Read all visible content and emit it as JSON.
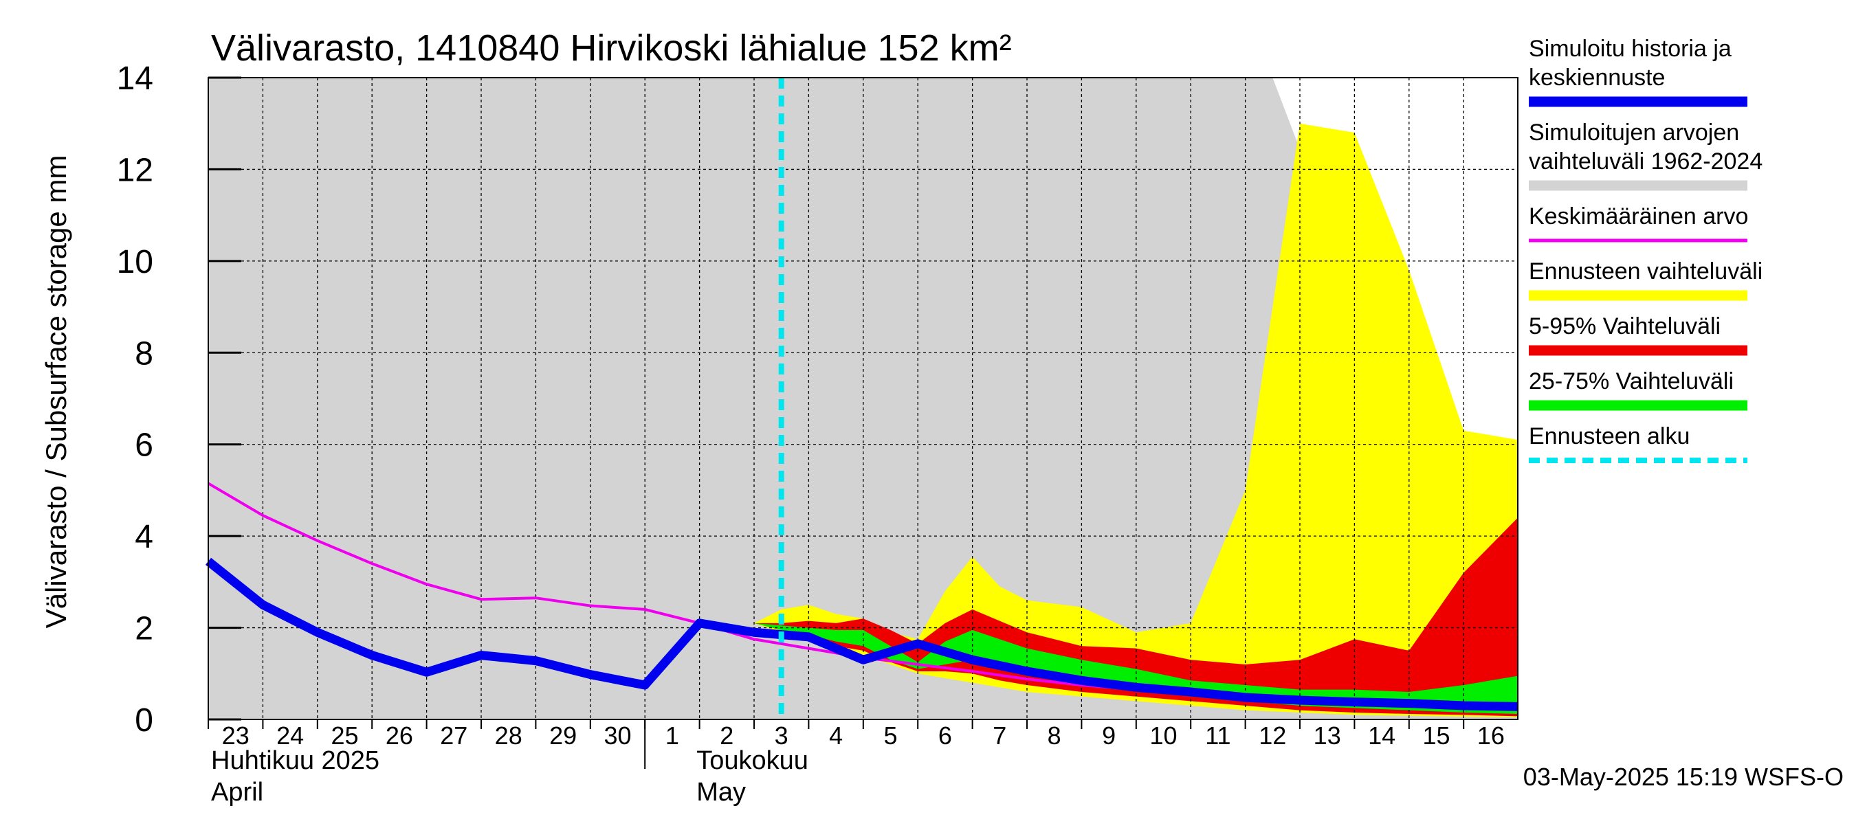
{
  "chart_data": {
    "type": "area",
    "title": "Välivarasto, 1410840 Hirvikoski lähialue 152 km²",
    "ylabel": "Välivarasto / Subsurface storage  mm",
    "xlabel": "",
    "ylim": [
      0,
      14
    ],
    "y_ticks": [
      0,
      2,
      4,
      6,
      8,
      10,
      12,
      14
    ],
    "grid": true,
    "x_tick_labels": [
      "23",
      "24",
      "25",
      "26",
      "27",
      "28",
      "29",
      "30",
      "1",
      "2",
      "3",
      "4",
      "5",
      "6",
      "7",
      "8",
      "9",
      "10",
      "11",
      "12",
      "13",
      "14",
      "15",
      "16"
    ],
    "month_labels": [
      {
        "fi": "Huhtikuu  2025",
        "en": "April"
      },
      {
        "fi": "Toukokuu",
        "en": "May"
      }
    ],
    "forecast_start_day": 10.5,
    "timestamp": "03-May-2025 15:19 WSFS-O",
    "legend_position": "right",
    "legend": [
      {
        "label_lines": [
          "Simuloitu historia ja",
          "keskiennuste"
        ],
        "color": "#0000ee",
        "style": "thick"
      },
      {
        "label_lines": [
          "Simuloitujen arvojen",
          "vaihteluväli 1962-2024"
        ],
        "color": "#d3d3d3",
        "style": "thick"
      },
      {
        "label_lines": [
          "Keskimääräinen arvo"
        ],
        "color": "#ee00ee",
        "style": "thin"
      },
      {
        "label_lines": [
          "Ennusteen vaihteluväli"
        ],
        "color": "#ffff00",
        "style": "thick"
      },
      {
        "label_lines": [
          "5-95% Vaihteluväli"
        ],
        "color": "#ee0000",
        "style": "thick"
      },
      {
        "label_lines": [
          "25-75% Vaihteluväli"
        ],
        "color": "#00ee00",
        "style": "thick"
      },
      {
        "label_lines": [
          "Ennusteen alku"
        ],
        "color": "#00e5ee",
        "style": "dashed"
      }
    ],
    "series": [
      {
        "name": "Simuloitujen arvojen vaihteluväli 1962-2024",
        "color": "#d3d3d3",
        "x_upper": [
          0,
          19.5,
          20.3,
          21.3,
          22.3,
          23.3,
          24.3
        ],
        "upper": [
          14,
          14,
          11.5,
          9.0,
          7.0,
          5.6,
          5.0
        ],
        "x_lower": [
          0,
          24.3
        ],
        "lower": [
          0,
          0
        ]
      },
      {
        "name": "Ennusteen vaihteluväli",
        "color": "#ffff00",
        "x": [
          10,
          10.5,
          11,
          11.5,
          12,
          12.5,
          13,
          13.5,
          14,
          14.5,
          15,
          16,
          17,
          18,
          19,
          20,
          21,
          22,
          23,
          24.3
        ],
        "upper": [
          2.1,
          2.4,
          2.5,
          2.3,
          2.2,
          1.9,
          1.75,
          2.8,
          3.55,
          2.9,
          2.6,
          2.45,
          1.9,
          2.1,
          5.0,
          13.0,
          12.8,
          9.8,
          6.3,
          6.1
        ],
        "lower": [
          2.1,
          1.9,
          1.7,
          1.5,
          1.4,
          1.2,
          1.0,
          0.9,
          0.8,
          0.7,
          0.6,
          0.5,
          0.4,
          0.3,
          0.2,
          0.15,
          0.1,
          0.08,
          0.06,
          0.05
        ]
      },
      {
        "name": "5-95% Vaihteluväli",
        "color": "#ee0000",
        "x": [
          10,
          10.5,
          11,
          11.5,
          12,
          12.5,
          13,
          13.5,
          14,
          14.5,
          15,
          16,
          17,
          18,
          19,
          20,
          21,
          22,
          23,
          24.3
        ],
        "upper": [
          2.1,
          2.1,
          2.15,
          2.1,
          2.2,
          1.95,
          1.65,
          2.1,
          2.4,
          2.15,
          1.9,
          1.6,
          1.55,
          1.3,
          1.2,
          1.3,
          1.75,
          1.5,
          3.2,
          4.4
        ],
        "lower": [
          2.1,
          1.95,
          1.8,
          1.6,
          1.5,
          1.25,
          1.05,
          1.05,
          1.0,
          0.85,
          0.75,
          0.6,
          0.5,
          0.4,
          0.3,
          0.2,
          0.15,
          0.12,
          0.1,
          0.07
        ]
      },
      {
        "name": "25-75% Vaihteluväli",
        "color": "#00ee00",
        "x": [
          10,
          10.5,
          11,
          11.5,
          12,
          12.5,
          13,
          13.5,
          14,
          14.5,
          15,
          16,
          17,
          18,
          19,
          20,
          21,
          22,
          23,
          24.3
        ],
        "upper": [
          2.1,
          2.05,
          2.0,
          1.95,
          1.95,
          1.6,
          1.25,
          1.7,
          1.95,
          1.75,
          1.55,
          1.3,
          1.1,
          0.85,
          0.75,
          0.65,
          0.65,
          0.6,
          0.75,
          0.95
        ],
        "lower": [
          2.1,
          1.95,
          1.85,
          1.7,
          1.6,
          1.3,
          1.1,
          1.2,
          1.3,
          1.1,
          0.95,
          0.8,
          0.65,
          0.5,
          0.4,
          0.3,
          0.25,
          0.2,
          0.15,
          0.12
        ]
      },
      {
        "name": "Keskimääräinen arvo",
        "color": "#ee00ee",
        "x": [
          0,
          1,
          2,
          3,
          4,
          5,
          6,
          7,
          8,
          9,
          10,
          11,
          12,
          13,
          14,
          15,
          16,
          17,
          18,
          19,
          20,
          21,
          22,
          23,
          24.3
        ],
        "values": [
          5.15,
          4.45,
          3.9,
          3.4,
          2.95,
          2.62,
          2.65,
          2.48,
          2.4,
          2.1,
          1.75,
          1.55,
          1.35,
          1.2,
          1.05,
          0.88,
          0.75,
          0.65,
          0.55,
          0.48,
          0.42,
          0.38,
          0.33,
          0.3,
          0.26
        ]
      },
      {
        "name": "Simuloitu historia ja keskiennuste",
        "color": "#0000ee",
        "x": [
          0,
          1,
          2,
          3,
          4,
          5,
          6,
          7,
          8,
          9,
          10,
          11,
          12,
          13,
          14,
          15,
          16,
          17,
          18,
          19,
          20,
          21,
          22,
          23,
          24.3
        ],
        "values": [
          3.45,
          2.5,
          1.9,
          1.4,
          1.03,
          1.4,
          1.28,
          0.98,
          0.75,
          2.1,
          1.9,
          1.8,
          1.3,
          1.65,
          1.3,
          1.05,
          0.85,
          0.7,
          0.6,
          0.48,
          0.42,
          0.38,
          0.35,
          0.3,
          0.28
        ]
      }
    ]
  }
}
